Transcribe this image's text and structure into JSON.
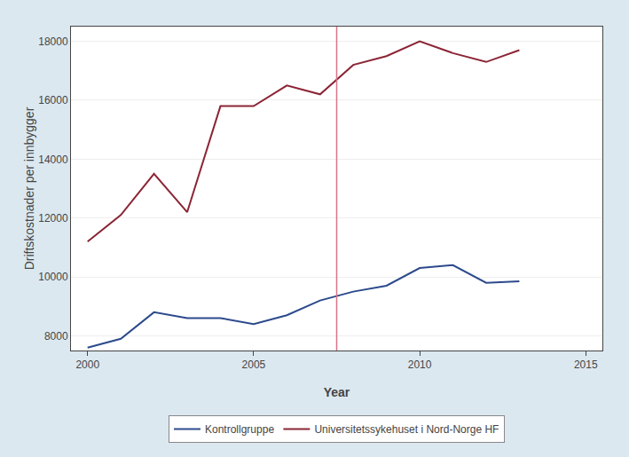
{
  "chart_data": {
    "type": "line",
    "x": [
      2000,
      2001,
      2002,
      2003,
      2004,
      2005,
      2006,
      2007,
      2008,
      2009,
      2010,
      2011,
      2012,
      2013
    ],
    "series": [
      {
        "name": "Kontrollgruppe",
        "color": "#2c4a8c",
        "values": [
          7600,
          7900,
          8800,
          8600,
          8600,
          8400,
          8700,
          9200,
          9500,
          9700,
          10300,
          10400,
          9800,
          9850
        ]
      },
      {
        "name": "Universitetssykehuset i Nord-Norge HF",
        "color": "#8b2535",
        "values": [
          11200,
          12100,
          13500,
          12200,
          15800,
          15800,
          16500,
          16200,
          17200,
          17500,
          18000,
          17600,
          17300,
          17700
        ]
      }
    ],
    "vlines": [
      {
        "x": 2007.5,
        "color": "#d9748a"
      }
    ],
    "xlabel": "Year",
    "ylabel": "Driftskostnader per innbygger",
    "xlim": [
      1999.5,
      2015.5
    ],
    "xticks": [
      2000,
      2005,
      2010,
      2015
    ],
    "ylim": [
      7500,
      18500
    ],
    "yticks": [
      8000,
      10000,
      12000,
      14000,
      16000,
      18000
    ],
    "grid": true,
    "legend": "bottom"
  }
}
